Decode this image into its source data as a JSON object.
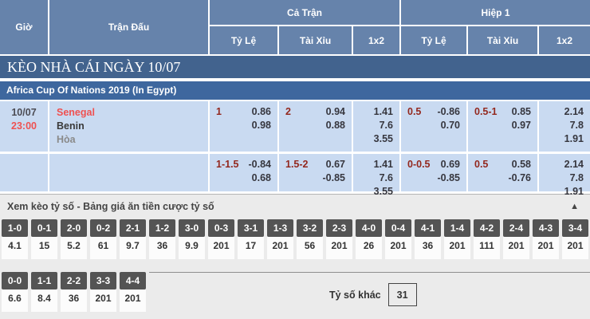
{
  "table_header": {
    "time": "Giờ",
    "match": "Trận Đấu",
    "full_time": "Cả Trận",
    "first_half": "Hiệp 1",
    "handicap": "Tỷ Lệ",
    "over_under": "Tài Xỉu",
    "one_x_two": "1x2"
  },
  "banner_title": "KÈO NHÀ CÁI NGÀY 10/07",
  "league_title": "Africa Cup Of Nations 2019 (In Egypt)",
  "match": {
    "date": "10/07",
    "time": "23:00",
    "home_team": "Senegal",
    "away_team": "Benin",
    "draw_label": "Hòa"
  },
  "odds_rows": [
    {
      "full_handicap": {
        "line": "1",
        "odd1": "0.86",
        "odd2": "0.98"
      },
      "full_over_under": {
        "line": "2",
        "odd1": "0.94",
        "odd2": "0.88"
      },
      "full_1x2": [
        "1.41",
        "7.6",
        "3.55"
      ],
      "half_handicap": {
        "line": "0.5",
        "odd1": "-0.86",
        "odd2": "0.70"
      },
      "half_over_under": {
        "line": "0.5-1",
        "odd1": "0.85",
        "odd2": "0.97"
      },
      "half_1x2": [
        "2.14",
        "7.8",
        "1.91"
      ]
    },
    {
      "full_handicap": {
        "line": "1-1.5",
        "odd1": "-0.84",
        "odd2": "0.68"
      },
      "full_over_under": {
        "line": "1.5-2",
        "odd1": "0.67",
        "odd2": "-0.85"
      },
      "full_1x2": [
        "1.41",
        "7.6",
        "3.55"
      ],
      "half_handicap": {
        "line": "0-0.5",
        "odd1": "0.69",
        "odd2": "-0.85"
      },
      "half_over_under": {
        "line": "0.5",
        "odd1": "0.58",
        "odd2": "-0.76"
      },
      "half_1x2": [
        "2.14",
        "7.8",
        "1.91"
      ]
    }
  ],
  "score_section": {
    "title": "Xem kèo tỷ số - Bảng giá ăn tiền cược tỷ số",
    "row1": [
      {
        "score": "1-0",
        "odds": "4.1"
      },
      {
        "score": "0-1",
        "odds": "15"
      },
      {
        "score": "2-0",
        "odds": "5.2"
      },
      {
        "score": "0-2",
        "odds": "61"
      },
      {
        "score": "2-1",
        "odds": "9.7"
      },
      {
        "score": "1-2",
        "odds": "36"
      },
      {
        "score": "3-0",
        "odds": "9.9"
      },
      {
        "score": "0-3",
        "odds": "201"
      },
      {
        "score": "3-1",
        "odds": "17"
      },
      {
        "score": "1-3",
        "odds": "201"
      },
      {
        "score": "3-2",
        "odds": "56"
      },
      {
        "score": "2-3",
        "odds": "201"
      },
      {
        "score": "4-0",
        "odds": "26"
      },
      {
        "score": "0-4",
        "odds": "201"
      },
      {
        "score": "4-1",
        "odds": "36"
      },
      {
        "score": "1-4",
        "odds": "201"
      },
      {
        "score": "4-2",
        "odds": "111"
      },
      {
        "score": "2-4",
        "odds": "201"
      },
      {
        "score": "4-3",
        "odds": "201"
      },
      {
        "score": "3-4",
        "odds": "201"
      }
    ],
    "row2": [
      {
        "score": "0-0",
        "odds": "6.6"
      },
      {
        "score": "1-1",
        "odds": "8.4"
      },
      {
        "score": "2-2",
        "odds": "36"
      },
      {
        "score": "3-3",
        "odds": "201"
      },
      {
        "score": "4-4",
        "odds": "201"
      }
    ],
    "other_label": "Tỷ số khác",
    "other_value": "31"
  },
  "icons": {
    "collapse": "▲"
  },
  "colors": {
    "header_bg": "#6683ab",
    "banner_bg": "#42638e",
    "league_bg": "#3e679e",
    "row_bg": "#c9daf1",
    "accent_red": "#ef5151",
    "handicap_red": "#93281e",
    "score_label_bg": "#545454",
    "panel_bg": "#ebebeb"
  }
}
